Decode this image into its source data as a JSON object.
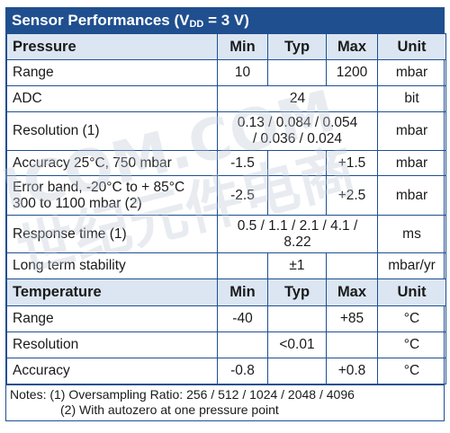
{
  "title": {
    "main": "Sensor Performances (V",
    "sub": "DD",
    "rest": " = 3 V)"
  },
  "pressure": {
    "header": [
      "Pressure",
      "Min",
      "Typ",
      "Max",
      "Unit"
    ],
    "rows": {
      "range": {
        "name": "Range",
        "min": "10",
        "typ": "",
        "max": "1200",
        "unit": "mbar"
      },
      "adc": {
        "name": "ADC",
        "value": "24",
        "unit": "bit"
      },
      "resolution": {
        "name": "Resolution (1)",
        "value_line1": "0.13 / 0.084 / 0.054",
        "value_line2": "/ 0.036 / 0.024",
        "unit": "mbar"
      },
      "accuracy": {
        "name": "Accuracy 25°C, 750 mbar",
        "min": "-1.5",
        "typ": "",
        "max": "+1.5",
        "unit": "mbar"
      },
      "error_band": {
        "name_line1": "Error band, -20°C to + 85°C",
        "name_line2": "300 to 1100 mbar (2)",
        "min": "-2.5",
        "typ": "",
        "max": "+2.5",
        "unit": "mbar"
      },
      "response": {
        "name": "Response time (1)",
        "value_line1": "0.5 / 1.1 / 2.1 / 4.1 /",
        "value_line2": "8.22",
        "unit": "ms"
      },
      "stability": {
        "name": "Long term stability",
        "min": "",
        "typ": "±1",
        "max": "",
        "unit": "mbar/yr"
      }
    }
  },
  "temperature": {
    "header": [
      "Temperature",
      "Min",
      "Typ",
      "Max",
      "Unit"
    ],
    "rows": {
      "range": {
        "name": "Range",
        "min": "-40",
        "typ": "",
        "max": "+85",
        "unit": "°C"
      },
      "resolution": {
        "name": "Resolution",
        "min": "",
        "typ": "<0.01",
        "max": "",
        "unit": "°C"
      },
      "accuracy": {
        "name": "Accuracy",
        "min": "-0.8",
        "typ": "",
        "max": "+0.8",
        "unit": "°C"
      }
    }
  },
  "notes": {
    "line1": "Notes: (1) Oversampling Ratio: 256 / 512 / 1024 / 2048 / 4096",
    "line2": "(2) With autozero at one pressure point"
  },
  "watermark": {
    "line1": "ICOM.COM",
    "line2": "世纪元件电商"
  }
}
